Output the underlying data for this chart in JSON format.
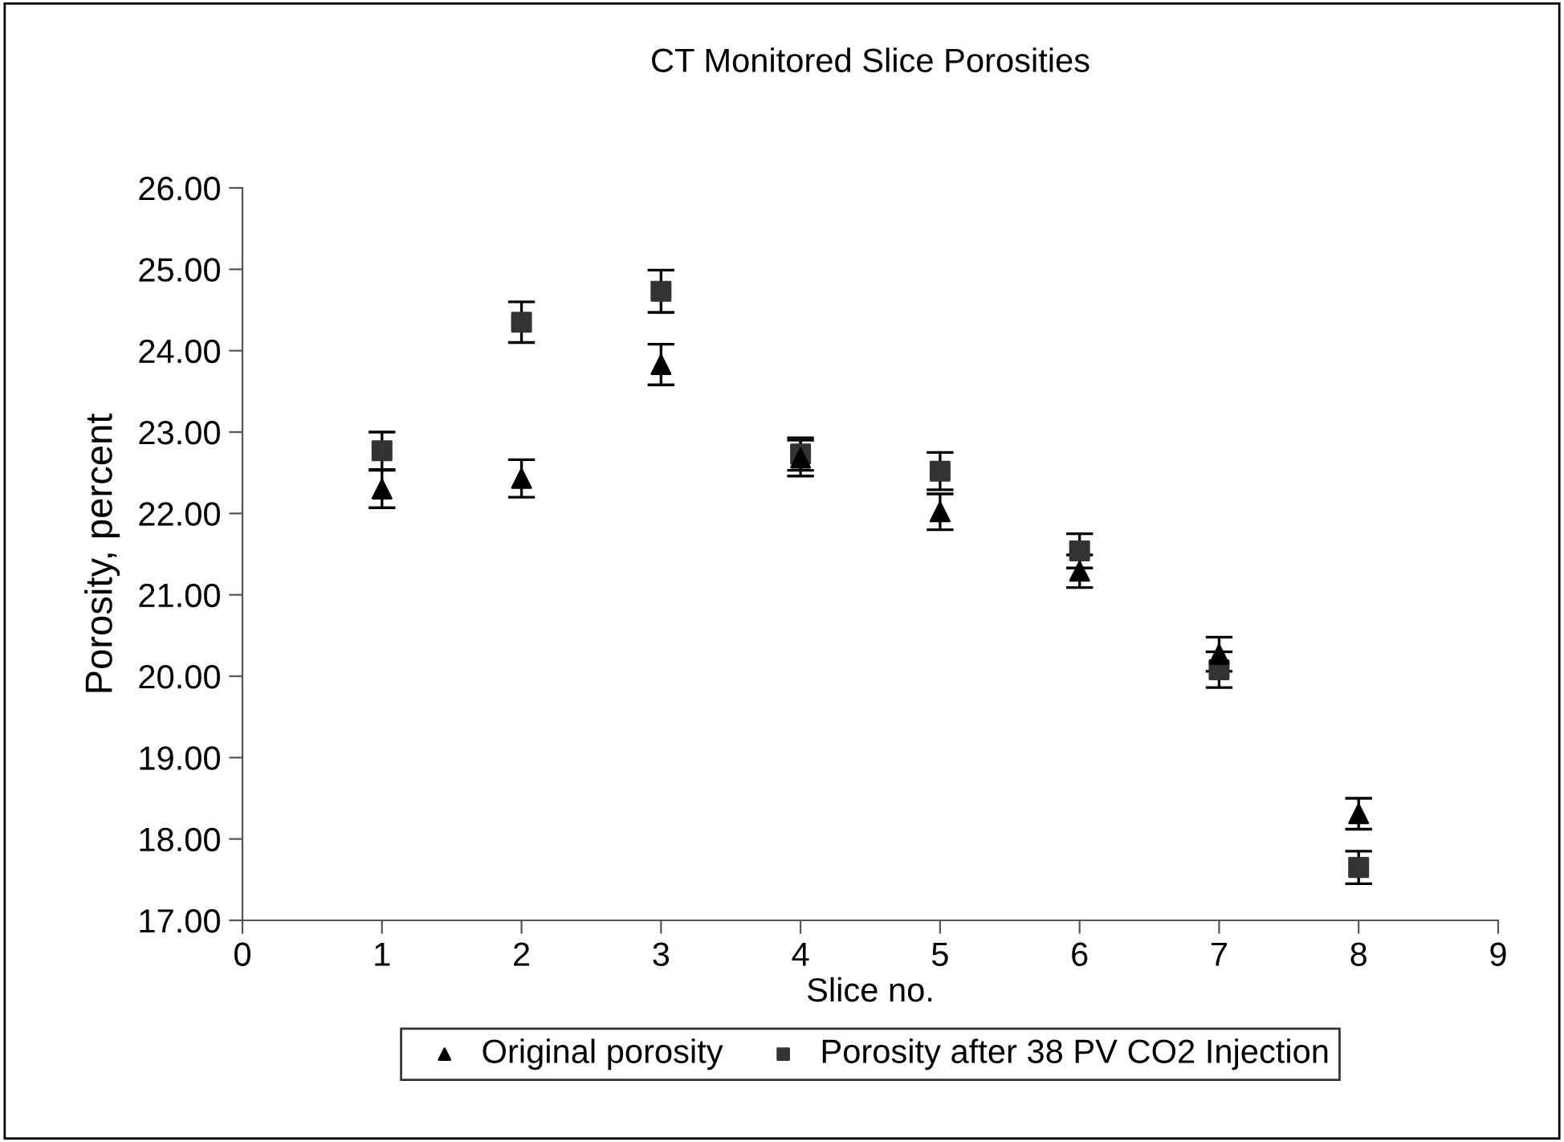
{
  "chart_data": {
    "type": "scatter",
    "title": "CT Monitored Slice Porosities",
    "xlabel": "Slice no.",
    "ylabel": "Porosity, percent",
    "x": [
      1,
      2,
      3,
      4,
      5,
      6,
      7,
      8
    ],
    "series": [
      {
        "name": "Original porosity",
        "color": "#000000",
        "marker": "triangle",
        "values": [
          22.3,
          22.43,
          23.83,
          22.68,
          22.02,
          21.29,
          20.27,
          18.31
        ],
        "errors": [
          0.23,
          0.23,
          0.25,
          0.22,
          0.22,
          0.2,
          0.21,
          0.19
        ]
      },
      {
        "name": "Porosity after 38 PV CO2 Injection",
        "color": "#333333",
        "marker": "square",
        "values": [
          22.77,
          24.35,
          24.73,
          22.73,
          22.52,
          21.54,
          20.08,
          17.65
        ],
        "errors": [
          0.23,
          0.25,
          0.26,
          0.2,
          0.23,
          0.21,
          0.22,
          0.2
        ]
      }
    ],
    "xlim": [
      0,
      9
    ],
    "xticks": [
      0,
      1,
      2,
      3,
      4,
      5,
      6,
      7,
      8,
      9
    ],
    "ylim": [
      17,
      26
    ],
    "yticks": [
      {
        "value": 17,
        "label": "17.00"
      },
      {
        "value": 18,
        "label": "18.00"
      },
      {
        "value": 19,
        "label": "19.00"
      },
      {
        "value": 20,
        "label": "20.00"
      },
      {
        "value": 21,
        "label": "21.00"
      },
      {
        "value": 22,
        "label": "22.00"
      },
      {
        "value": 23,
        "label": "23.00"
      },
      {
        "value": 24,
        "label": "24.00"
      },
      {
        "value": 25,
        "label": "25.00"
      },
      {
        "value": 26,
        "label": "26.00"
      }
    ],
    "grid": false,
    "legend": "bottom"
  }
}
